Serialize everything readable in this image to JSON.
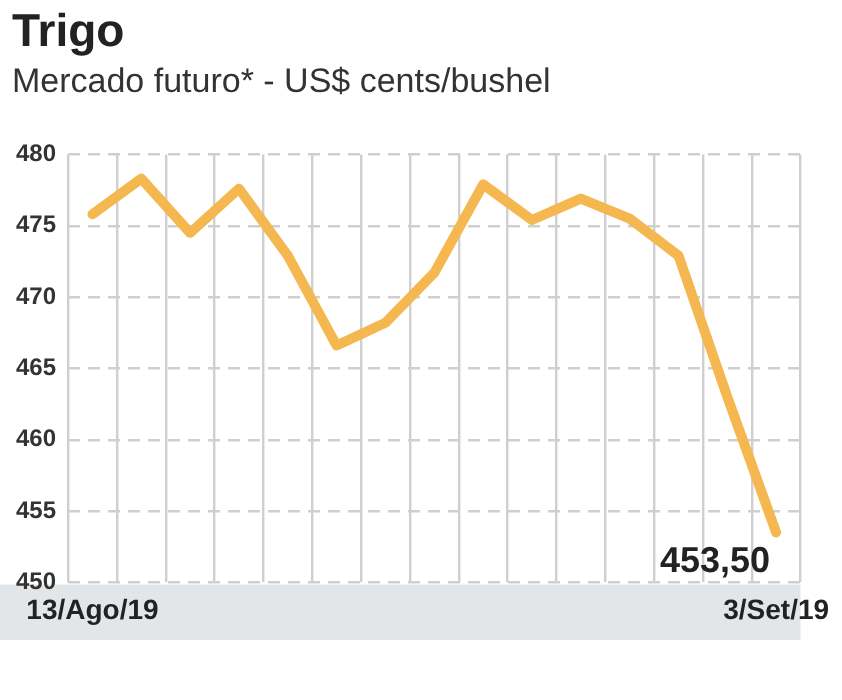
{
  "chart_data": {
    "type": "line",
    "title": "Trigo",
    "subtitle": "Mercado futuro* - US$ cents/bushel",
    "categories": [
      "13/Ago/19",
      null,
      null,
      null,
      null,
      null,
      null,
      null,
      null,
      null,
      null,
      null,
      null,
      null,
      "3/Set/19"
    ],
    "series": [
      {
        "color": "#f5b74f",
        "values": [
          475.8,
          478.3,
          474.5,
          477.6,
          472.9,
          466.6,
          468.2,
          471.7,
          477.9,
          475.4,
          476.9,
          475.5,
          472.9,
          463,
          453.5
        ],
        "value_labels": [
          null,
          null,
          null,
          null,
          null,
          null,
          null,
          null,
          null,
          null,
          null,
          null,
          null,
          null,
          "453,50"
        ]
      }
    ],
    "ylim": [
      450,
      480
    ],
    "yticks": [
      450,
      455,
      460,
      465,
      470,
      475,
      480
    ],
    "grid": true,
    "legend": false,
    "marker": "none",
    "line_style": "solid"
  }
}
